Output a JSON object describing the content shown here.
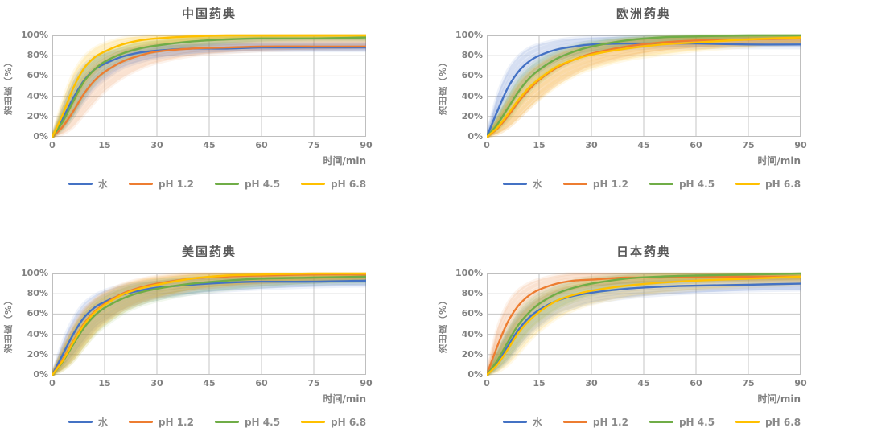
{
  "page": {
    "background": "#FFFFFF"
  },
  "colors": {
    "grid": "#C6C6C6",
    "plot_border": "#BFBFBF",
    "tick_text": "#808080",
    "title_text": "#595959",
    "axis_title_text": "#7F7F7F",
    "band_fill_opacity": 0.14,
    "strand_opacity": 0.09
  },
  "legend": {
    "items": [
      {
        "label": "水",
        "color": "#4472C4"
      },
      {
        "label": "pH 1.2",
        "color": "#ED7D31"
      },
      {
        "label": "pH 4.5",
        "color": "#70AD47"
      },
      {
        "label": "pH 6.8",
        "color": "#FFC000"
      }
    ]
  },
  "chart_data": [
    {
      "type": "line",
      "title": "中国药典",
      "xlabel": "时间/min",
      "ylabel": "溶出度（%）",
      "xlim": [
        0,
        90
      ],
      "ylim": [
        0,
        100
      ],
      "grid": true,
      "legend_position": "bottom",
      "x_ticks": [
        0,
        15,
        30,
        45,
        60,
        75,
        90
      ],
      "y_tick_values": [
        0,
        20,
        40,
        60,
        80,
        100
      ],
      "y_tick_labels": [
        "0%",
        "20%",
        "40%",
        "60%",
        "80%",
        "100%"
      ],
      "x": [
        0,
        3,
        6,
        9,
        12,
        15,
        20,
        25,
        30,
        40,
        50,
        60,
        75,
        90
      ],
      "series": [
        {
          "name": "水",
          "color": "#4472C4",
          "mean": [
            0,
            18,
            38,
            55,
            66,
            72,
            79,
            83,
            85,
            87,
            87,
            88,
            88,
            88
          ],
          "upper": [
            0,
            30,
            55,
            70,
            78,
            82,
            86,
            88,
            90,
            91,
            92,
            92,
            92,
            92
          ],
          "lower": [
            0,
            8,
            20,
            35,
            48,
            57,
            68,
            74,
            78,
            82,
            84,
            85,
            85,
            85
          ]
        },
        {
          "name": "pH 1.2",
          "color": "#ED7D31",
          "mean": [
            0,
            10,
            25,
            42,
            55,
            64,
            74,
            80,
            84,
            87,
            88,
            89,
            89,
            89
          ],
          "upper": [
            0,
            20,
            40,
            58,
            69,
            76,
            84,
            89,
            92,
            95,
            96,
            97,
            97,
            97
          ],
          "lower": [
            0,
            3,
            10,
            22,
            34,
            45,
            58,
            67,
            73,
            80,
            83,
            85,
            86,
            87
          ]
        },
        {
          "name": "pH 4.5",
          "color": "#70AD47",
          "mean": [
            0,
            15,
            35,
            54,
            66,
            74,
            82,
            87,
            90,
            94,
            96,
            97,
            97,
            98
          ],
          "upper": [
            0,
            25,
            50,
            67,
            77,
            83,
            89,
            93,
            95,
            98,
            99,
            100,
            100,
            100
          ],
          "lower": [
            0,
            7,
            20,
            38,
            52,
            62,
            73,
            80,
            84,
            89,
            92,
            94,
            95,
            95
          ]
        },
        {
          "name": "pH 6.8",
          "color": "#FFC000",
          "mean": [
            0,
            22,
            48,
            67,
            78,
            84,
            91,
            95,
            97,
            99,
            100,
            100,
            100,
            100
          ],
          "upper": [
            0,
            35,
            62,
            78,
            87,
            92,
            97,
            99,
            100,
            100,
            100,
            100,
            100,
            100
          ],
          "lower": [
            0,
            10,
            30,
            50,
            63,
            72,
            82,
            88,
            91,
            95,
            97,
            98,
            99,
            99
          ]
        }
      ]
    },
    {
      "type": "line",
      "title": "欧洲药典",
      "xlabel": "时间/min",
      "ylabel": "溶出度（%）",
      "xlim": [
        0,
        90
      ],
      "ylim": [
        0,
        100
      ],
      "grid": true,
      "legend_position": "bottom",
      "x_ticks": [
        0,
        15,
        30,
        45,
        60,
        75,
        90
      ],
      "y_tick_values": [
        0,
        20,
        40,
        60,
        80,
        100
      ],
      "y_tick_labels": [
        "0%",
        "20%",
        "40%",
        "60%",
        "80%",
        "100%"
      ],
      "x": [
        0,
        3,
        6,
        9,
        12,
        15,
        20,
        25,
        30,
        40,
        50,
        60,
        75,
        90
      ],
      "series": [
        {
          "name": "水",
          "color": "#4472C4",
          "mean": [
            0,
            25,
            48,
            64,
            74,
            80,
            86,
            89,
            91,
            92,
            92,
            92,
            91,
            91
          ],
          "upper": [
            0,
            40,
            65,
            79,
            87,
            91,
            95,
            97,
            98,
            99,
            99,
            99,
            99,
            99
          ],
          "lower": [
            0,
            12,
            28,
            44,
            56,
            64,
            74,
            80,
            84,
            87,
            88,
            88,
            88,
            88
          ]
        },
        {
          "name": "pH 1.2",
          "color": "#ED7D31",
          "mean": [
            0,
            8,
            20,
            34,
            46,
            56,
            68,
            76,
            82,
            89,
            93,
            95,
            96,
            97
          ],
          "upper": [
            0,
            16,
            34,
            50,
            62,
            70,
            80,
            86,
            90,
            95,
            97,
            98,
            99,
            100
          ],
          "lower": [
            0,
            3,
            9,
            18,
            28,
            38,
            52,
            62,
            70,
            79,
            85,
            88,
            91,
            93
          ]
        },
        {
          "name": "pH 4.5",
          "color": "#70AD47",
          "mean": [
            0,
            12,
            28,
            44,
            57,
            66,
            77,
            84,
            89,
            95,
            98,
            99,
            100,
            100
          ],
          "upper": [
            0,
            20,
            40,
            57,
            68,
            76,
            85,
            90,
            94,
            98,
            100,
            100,
            100,
            100
          ],
          "lower": [
            0,
            6,
            16,
            30,
            43,
            53,
            66,
            75,
            81,
            89,
            93,
            96,
            98,
            99
          ]
        },
        {
          "name": "pH 6.8",
          "color": "#FFC000",
          "mean": [
            0,
            9,
            22,
            36,
            48,
            57,
            69,
            76,
            81,
            87,
            91,
            93,
            96,
            98
          ],
          "upper": [
            0,
            18,
            36,
            52,
            63,
            71,
            81,
            87,
            91,
            96,
            98,
            99,
            100,
            100
          ],
          "lower": [
            0,
            3,
            9,
            18,
            28,
            37,
            50,
            60,
            67,
            76,
            81,
            85,
            89,
            92
          ]
        }
      ]
    },
    {
      "type": "line",
      "title": "美国药典",
      "xlabel": "时间/min",
      "ylabel": "溶出度（%）",
      "xlim": [
        0,
        90
      ],
      "ylim": [
        0,
        100
      ],
      "grid": true,
      "legend_position": "bottom",
      "x_ticks": [
        0,
        15,
        30,
        45,
        60,
        75,
        90
      ],
      "y_tick_values": [
        0,
        20,
        40,
        60,
        80,
        100
      ],
      "y_tick_labels": [
        "0%",
        "20%",
        "40%",
        "60%",
        "80%",
        "100%"
      ],
      "x": [
        0,
        3,
        6,
        9,
        12,
        15,
        20,
        25,
        30,
        40,
        50,
        60,
        75,
        90
      ],
      "series": [
        {
          "name": "水",
          "color": "#4472C4",
          "mean": [
            0,
            20,
            40,
            56,
            66,
            72,
            79,
            83,
            86,
            89,
            91,
            92,
            92,
            93
          ],
          "upper": [
            0,
            32,
            55,
            70,
            78,
            83,
            88,
            91,
            93,
            95,
            96,
            97,
            97,
            97
          ],
          "lower": [
            0,
            8,
            20,
            34,
            46,
            54,
            64,
            70,
            75,
            80,
            83,
            85,
            87,
            88
          ]
        },
        {
          "name": "pH 1.2",
          "color": "#ED7D31",
          "mean": [
            0,
            15,
            33,
            50,
            62,
            70,
            80,
            86,
            90,
            95,
            97,
            98,
            99,
            99
          ],
          "upper": [
            0,
            26,
            48,
            64,
            74,
            81,
            89,
            94,
            97,
            100,
            100,
            100,
            100,
            100
          ],
          "lower": [
            0,
            6,
            16,
            30,
            42,
            52,
            64,
            72,
            77,
            84,
            88,
            90,
            92,
            94
          ]
        },
        {
          "name": "pH 4.5",
          "color": "#70AD47",
          "mean": [
            0,
            13,
            30,
            46,
            58,
            66,
            75,
            81,
            85,
            90,
            93,
            95,
            96,
            97
          ],
          "upper": [
            0,
            24,
            44,
            60,
            70,
            77,
            85,
            90,
            93,
            97,
            98,
            99,
            100,
            100
          ],
          "lower": [
            0,
            5,
            14,
            27,
            39,
            48,
            60,
            68,
            73,
            80,
            84,
            87,
            90,
            91
          ]
        },
        {
          "name": "pH 6.8",
          "color": "#FFC000",
          "mean": [
            0,
            14,
            32,
            49,
            61,
            69,
            79,
            85,
            89,
            95,
            98,
            99,
            100,
            100
          ],
          "upper": [
            0,
            25,
            46,
            62,
            73,
            80,
            88,
            93,
            96,
            99,
            100,
            100,
            100,
            100
          ],
          "lower": [
            0,
            5,
            14,
            27,
            40,
            50,
            62,
            70,
            76,
            84,
            88,
            91,
            94,
            95
          ]
        }
      ]
    },
    {
      "type": "line",
      "title": "日本药典",
      "xlabel": "时间/min",
      "ylabel": "溶出度（%）",
      "xlim": [
        0,
        90
      ],
      "ylim": [
        0,
        100
      ],
      "grid": true,
      "legend_position": "bottom",
      "x_ticks": [
        0,
        15,
        30,
        45,
        60,
        75,
        90
      ],
      "y_tick_values": [
        0,
        20,
        40,
        60,
        80,
        100
      ],
      "y_tick_labels": [
        "0%",
        "20%",
        "40%",
        "60%",
        "80%",
        "100%"
      ],
      "x": [
        0,
        3,
        6,
        9,
        12,
        15,
        20,
        25,
        30,
        40,
        50,
        60,
        75,
        90
      ],
      "series": [
        {
          "name": "水",
          "color": "#4472C4",
          "mean": [
            0,
            12,
            28,
            44,
            56,
            64,
            73,
            78,
            81,
            85,
            87,
            88,
            89,
            90
          ],
          "upper": [
            0,
            22,
            42,
            58,
            68,
            75,
            83,
            87,
            89,
            92,
            93,
            94,
            94,
            95
          ],
          "lower": [
            0,
            5,
            14,
            27,
            39,
            48,
            60,
            66,
            71,
            76,
            79,
            81,
            83,
            84
          ]
        },
        {
          "name": "pH 1.2",
          "color": "#ED7D31",
          "mean": [
            0,
            28,
            52,
            68,
            78,
            84,
            90,
            93,
            94,
            96,
            96,
            97,
            97,
            97
          ],
          "upper": [
            0,
            45,
            70,
            83,
            90,
            94,
            98,
            100,
            100,
            100,
            100,
            100,
            100,
            100
          ],
          "lower": [
            0,
            14,
            32,
            48,
            60,
            68,
            78,
            84,
            87,
            90,
            92,
            93,
            93,
            94
          ]
        },
        {
          "name": "pH 4.5",
          "color": "#70AD47",
          "mean": [
            0,
            14,
            32,
            49,
            61,
            70,
            80,
            86,
            90,
            95,
            97,
            98,
            99,
            100
          ],
          "upper": [
            0,
            24,
            45,
            62,
            73,
            80,
            88,
            93,
            96,
            99,
            100,
            100,
            100,
            100
          ],
          "lower": [
            0,
            6,
            16,
            30,
            43,
            53,
            65,
            73,
            79,
            86,
            90,
            92,
            94,
            95
          ]
        },
        {
          "name": "pH 6.8",
          "color": "#FFC000",
          "mean": [
            0,
            10,
            25,
            41,
            53,
            62,
            73,
            79,
            83,
            88,
            91,
            93,
            95,
            97
          ],
          "upper": [
            0,
            20,
            40,
            56,
            67,
            75,
            84,
            89,
            92,
            96,
            98,
            99,
            100,
            100
          ],
          "lower": [
            0,
            3,
            10,
            21,
            33,
            43,
            56,
            64,
            70,
            77,
            81,
            84,
            87,
            89
          ]
        }
      ]
    }
  ]
}
